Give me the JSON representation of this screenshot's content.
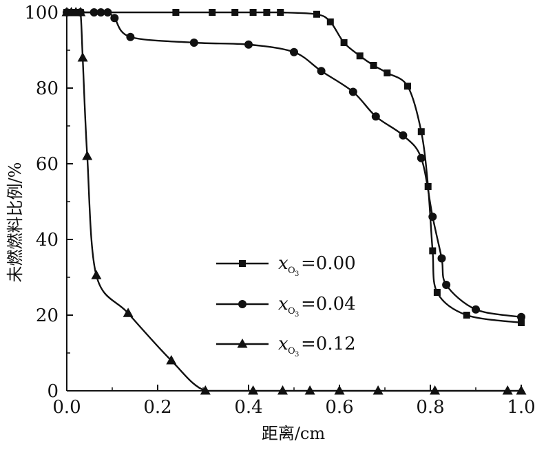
{
  "chart_data": {
    "type": "line",
    "title": "",
    "xlabel": "距离/cm",
    "ylabel": "未燃燃料比例/%",
    "xlim": [
      0,
      1.0
    ],
    "ylim": [
      0,
      100
    ],
    "xticks": [
      "0.0",
      "0.2",
      "0.4",
      "0.6",
      "0.8",
      "1.0"
    ],
    "yticks": [
      "0",
      "20",
      "40",
      "60",
      "80",
      "100"
    ],
    "grid": false,
    "legend_position": "center-bottom",
    "series": [
      {
        "name": "x_O3=0.00",
        "marker": "square",
        "x": [
          0.0,
          0.01,
          0.02,
          0.03,
          0.24,
          0.32,
          0.37,
          0.41,
          0.44,
          0.47,
          0.55,
          0.58,
          0.61,
          0.645,
          0.675,
          0.705,
          0.75,
          0.78,
          0.795,
          0.805,
          0.815,
          0.88,
          1.0
        ],
        "y": [
          100,
          100,
          100,
          100,
          100,
          100,
          100,
          100,
          100,
          100,
          99.5,
          97.5,
          92,
          88.5,
          86,
          84,
          80.5,
          68.5,
          54,
          37,
          26,
          20,
          18
        ]
      },
      {
        "name": "x_O3=0.04",
        "marker": "circle",
        "x": [
          0.0,
          0.03,
          0.06,
          0.075,
          0.09,
          0.105,
          0.14,
          0.28,
          0.4,
          0.5,
          0.56,
          0.63,
          0.68,
          0.74,
          0.78,
          0.805,
          0.825,
          0.835,
          0.9,
          1.0
        ],
        "y": [
          100,
          100,
          100,
          100,
          100,
          98.5,
          93.5,
          92,
          91.5,
          89.5,
          84.5,
          79,
          72.5,
          67.5,
          61.5,
          46,
          35,
          28,
          21.5,
          19.5
        ]
      },
      {
        "name": "x_O3=0.12",
        "marker": "triangle",
        "x": [
          0.0,
          0.01,
          0.02,
          0.03,
          0.035,
          0.045,
          0.065,
          0.135,
          0.23,
          0.305,
          0.41,
          0.475,
          0.535,
          0.6,
          0.685,
          0.81,
          0.97,
          1.0
        ],
        "y": [
          100,
          100,
          100,
          100,
          88,
          62,
          30.5,
          20.5,
          8,
          0,
          0,
          0,
          0,
          0,
          0,
          0,
          0,
          0
        ]
      }
    ]
  },
  "legend": {
    "var": "x",
    "sub": "O",
    "subsub": "3",
    "values": [
      "=0.00",
      "=0.04",
      "=0.12"
    ]
  },
  "colors": {
    "ink": "#111111",
    "background": "#ffffff"
  }
}
